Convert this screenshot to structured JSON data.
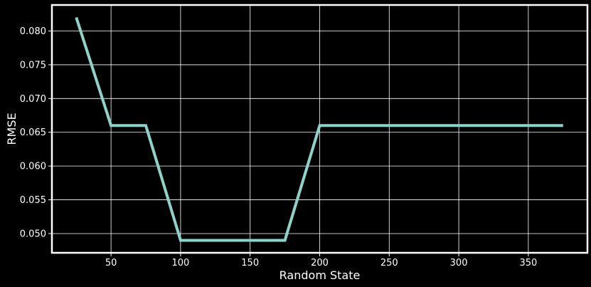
{
  "chart_data": {
    "type": "line",
    "title": "",
    "xlabel": "Random State",
    "ylabel": "RMSE",
    "x": [
      25,
      50,
      75,
      100,
      125,
      150,
      175,
      200,
      225,
      250,
      275,
      300,
      325,
      350,
      375
    ],
    "series": [
      {
        "values": [
          0.082,
          0.066,
          0.066,
          0.049,
          0.049,
          0.049,
          0.049,
          0.066,
          0.066,
          0.066,
          0.066,
          0.066,
          0.066,
          0.066,
          0.066
        ]
      }
    ],
    "xlim": [
      7.5,
      392.5
    ],
    "ylim": [
      0.04715,
      0.08385
    ],
    "xticks": [
      50,
      100,
      150,
      200,
      250,
      300,
      350
    ],
    "xtick_labels": [
      "50",
      "100",
      "150",
      "200",
      "250",
      "300",
      "350"
    ],
    "yticks": [
      0.05,
      0.055,
      0.06,
      0.065,
      0.07,
      0.075,
      0.08
    ],
    "ytick_labels": [
      "0.050",
      "0.055",
      "0.060",
      "0.065",
      "0.070",
      "0.075",
      "0.080"
    ],
    "grid": true,
    "colors": {
      "background": "#000000",
      "foreground": "#ffffff",
      "line": "#8dd3c7"
    }
  }
}
